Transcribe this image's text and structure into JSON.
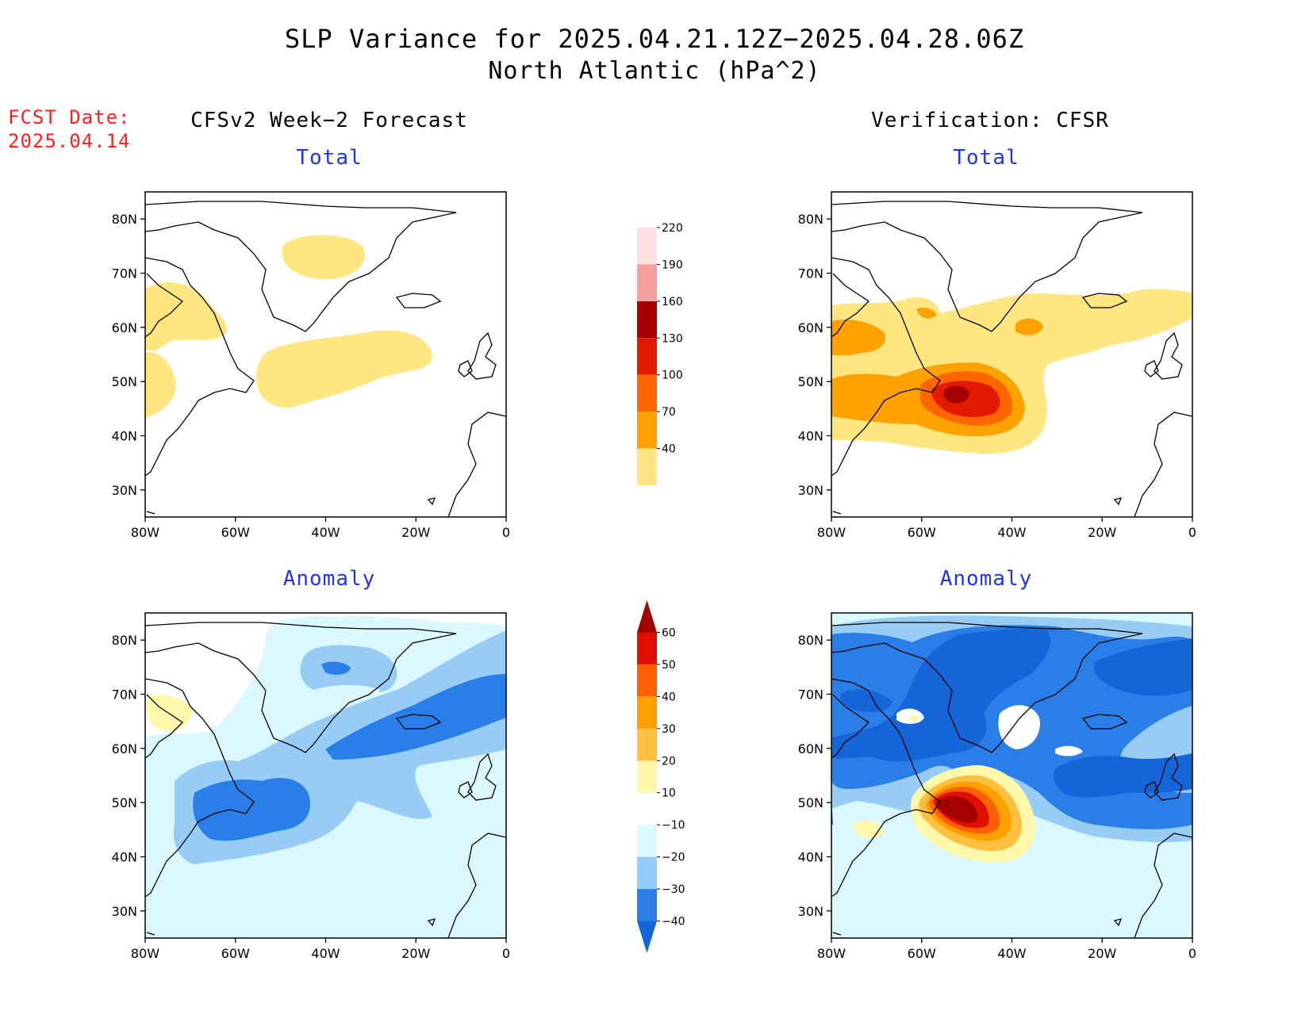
{
  "title": "SLP Variance for 2025.04.21.12Z−2025.04.28.06Z",
  "subtitle": "North Atlantic (hPa^2)",
  "forecast_date": {
    "label": "FCST Date:",
    "value": "2025.04.14"
  },
  "columns": {
    "left": "CFSv2 Week−2 Forecast",
    "right": "Verification: CFSR"
  },
  "panels": {
    "fcst_total": {
      "title": "Total"
    },
    "verif_total": {
      "title": "Total"
    },
    "fcst_anomaly": {
      "title": "Anomaly"
    },
    "verif_anomaly": {
      "title": "Anomaly"
    }
  },
  "axes": {
    "lat_ticks": [
      "80N",
      "70N",
      "60N",
      "50N",
      "40N",
      "30N"
    ],
    "lon_ticks": [
      "80W",
      "60W",
      "40W",
      "20W",
      "0"
    ],
    "lat_range": [
      25,
      85
    ],
    "lon_range": [
      -80,
      0
    ]
  },
  "colorbars": {
    "total": {
      "levels": [
        "40",
        "70",
        "100",
        "130",
        "160",
        "190",
        "220"
      ],
      "colors": [
        "#ffe680",
        "#ffa200",
        "#ff6600",
        "#e11a00",
        "#a50000",
        "#f4a0a0",
        "#fde0e0"
      ]
    },
    "anomaly": {
      "levels": [
        "−40",
        "−30",
        "−20",
        "−10",
        "10",
        "20",
        "30",
        "40",
        "50",
        "60"
      ],
      "colors": [
        "#1565d8",
        "#2a7ee8",
        "#96ccf5",
        "#dcf8ff",
        "#ffffff",
        "#fff7aa",
        "#ffc040",
        "#ffa000",
        "#ff6000",
        "#e01000",
        "#a50000"
      ]
    }
  },
  "map_style": {
    "coastline_color": "#000000",
    "frame_color": "#000000"
  }
}
